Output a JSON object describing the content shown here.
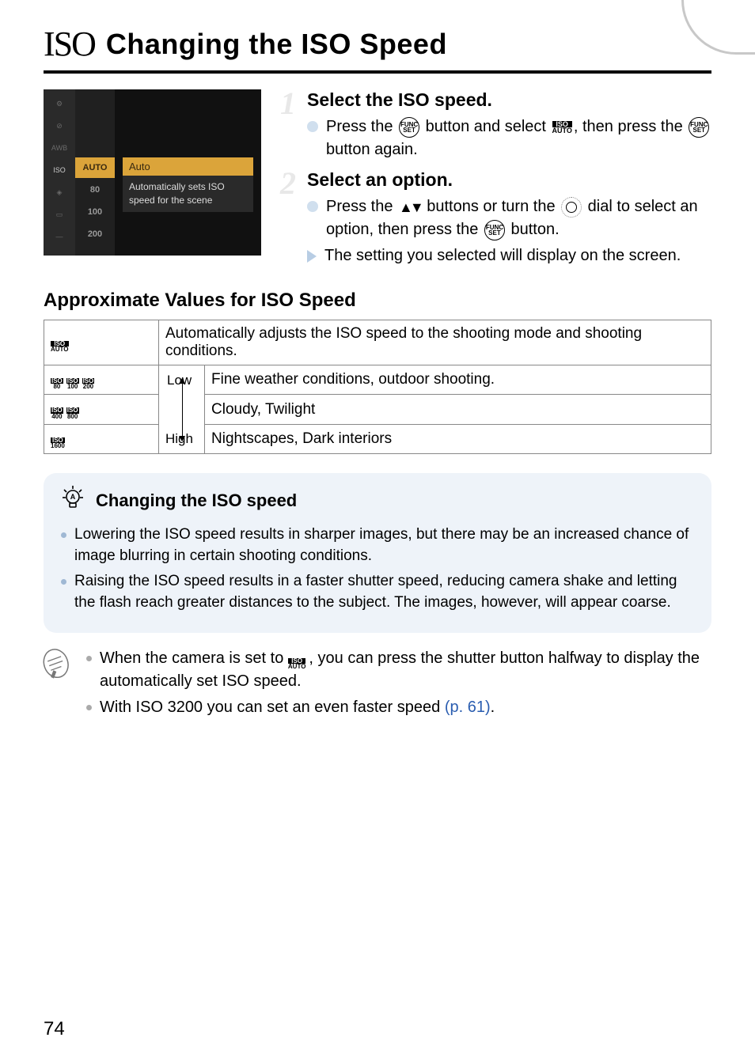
{
  "heading": {
    "iso_glyph": "ISO",
    "title": "Changing the ISO Speed"
  },
  "screenshot": {
    "left_icons": [
      "⚙",
      "⊘",
      "AWB",
      "ISO",
      "◈",
      "▭",
      "—"
    ],
    "mid_items": [
      "AUTO",
      "80",
      "100",
      "200"
    ],
    "desc_title": "Auto",
    "desc_body": "Automatically sets ISO speed for the scene"
  },
  "steps": [
    {
      "num": "1",
      "title": "Select the ISO speed.",
      "bullets": [
        {
          "type": "dot",
          "html": "Press the {func} button and select {isoauto}, then press the {func} button again."
        }
      ]
    },
    {
      "num": "2",
      "title": "Select an option.",
      "bullets": [
        {
          "type": "dot",
          "html": "Press the {updown} buttons or turn the {dial} dial to select an option, then press the {func} button."
        },
        {
          "type": "tri",
          "html": "The setting you selected will display on the screen."
        }
      ]
    }
  ],
  "approx": {
    "title": "Approximate Values for ISO Speed",
    "rows": [
      {
        "badges": [
          "ISO|AUTO"
        ],
        "label": "",
        "desc": "Automatically adjusts the ISO speed to the shooting mode and shooting conditions."
      },
      {
        "badges": [
          "ISO|80",
          "ISO|100",
          "ISO|200"
        ],
        "label": "Low",
        "desc": "Fine weather conditions, outdoor shooting."
      },
      {
        "badges": [
          "ISO|400",
          "ISO|800"
        ],
        "label": "",
        "desc": "Cloudy, Twilight"
      },
      {
        "badges": [
          "ISO|1600"
        ],
        "label": "High",
        "desc": "Nightscapes, Dark interiors"
      }
    ]
  },
  "tip": {
    "title": "Changing the ISO speed",
    "bullets": [
      "Lowering the ISO speed results in sharper images, but there may be an increased chance of image blurring in certain shooting conditions.",
      "Raising the ISO speed results in a faster shutter speed, reducing camera shake and letting the flash reach greater distances to the subject. The images, however, will appear coarse."
    ]
  },
  "notes": [
    {
      "text_before": "When the camera is set to ",
      "badge": "ISO|AUTO",
      "text_after": ", you can press the shutter button halfway to display the automatically set ISO speed."
    },
    {
      "text_before": "With ISO 3200 you can set an even faster speed ",
      "link": "(p. 61)",
      "text_after": "."
    }
  ],
  "page_number": "74",
  "colors": {
    "tip_bg": "#eef3f9",
    "link": "#2a5db0",
    "highlight": "#dba43a"
  }
}
